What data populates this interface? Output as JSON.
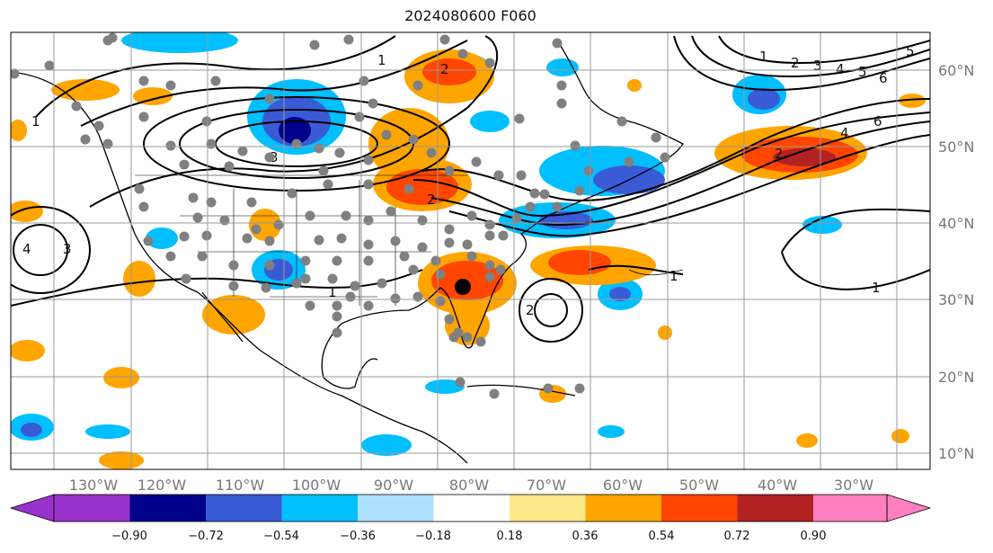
{
  "title": "2024080600 F060",
  "longitude_labels": [
    "130°W",
    "120°W",
    "110°W",
    "100°W",
    "90°W",
    "80°W",
    "70°W",
    "60°W",
    "50°W",
    "40°W",
    "30°W"
  ],
  "latitude_labels": [
    "60°N",
    "50°N",
    "40°N",
    "30°N",
    "20°N",
    "10°N"
  ],
  "colorbar": {
    "tick_labels": [
      "−0.90",
      "−0.72",
      "−0.54",
      "−0.36",
      "−0.18",
      "0.18",
      "0.36",
      "0.54",
      "0.72",
      "0.90"
    ],
    "colors": [
      "#9932cc",
      "#00008b",
      "#3a5bd6",
      "#00bfff",
      "#b0e0ff",
      "#ffffff",
      "#ffe88a",
      "#ffa500",
      "#ff4500",
      "#b22222",
      "#ff7fbf"
    ]
  },
  "contour_labels": [
    "1",
    "2",
    "3",
    "4",
    "5",
    "6",
    "1",
    "2",
    "3",
    "4",
    "1",
    "2",
    "1",
    "1",
    "1",
    "2",
    "3",
    "4",
    "6"
  ],
  "colors": {
    "gridline": "#999999",
    "station_dot": "#808080",
    "highlight_dot": "#000000"
  }
}
